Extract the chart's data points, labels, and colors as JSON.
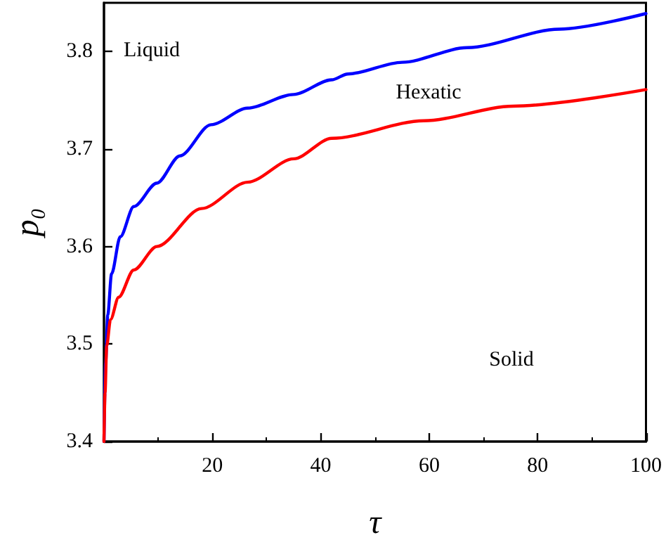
{
  "chart_data": {
    "type": "line",
    "xlabel": "τ",
    "ylabel": "p₀",
    "xlim": [
      0,
      100
    ],
    "xticks": [
      20,
      40,
      60,
      80,
      100
    ],
    "ylim": [
      3.4,
      3.85
    ],
    "yticks": [
      3.4,
      3.5,
      3.6,
      3.7,
      3.8
    ],
    "series": [
      {
        "color": "#0000ff",
        "x": [
          0,
          0.3,
          0.7,
          1.4,
          3,
          5.5,
          9.75,
          14,
          19.75,
          26.5,
          35,
          42,
          45,
          55,
          67,
          84,
          100
        ],
        "values": [
          3.4,
          3.48,
          3.53,
          3.572,
          3.61,
          3.641,
          3.665,
          3.693,
          3.725,
          3.742,
          3.756,
          3.771,
          3.777,
          3.789,
          3.804,
          3.823,
          3.839
        ]
      },
      {
        "color": "#ff0000",
        "x": [
          0,
          0.2,
          0.5,
          1.2,
          2.7,
          5.5,
          9.75,
          18,
          26.5,
          35,
          42,
          59,
          75.5,
          100
        ],
        "values": [
          3.4,
          3.45,
          3.498,
          3.525,
          3.548,
          3.576,
          3.6,
          3.639,
          3.666,
          3.69,
          3.711,
          3.729,
          3.744,
          3.761
        ]
      }
    ],
    "annotations": [
      "Liquid",
      "Hexatic",
      "Solid"
    ]
  }
}
